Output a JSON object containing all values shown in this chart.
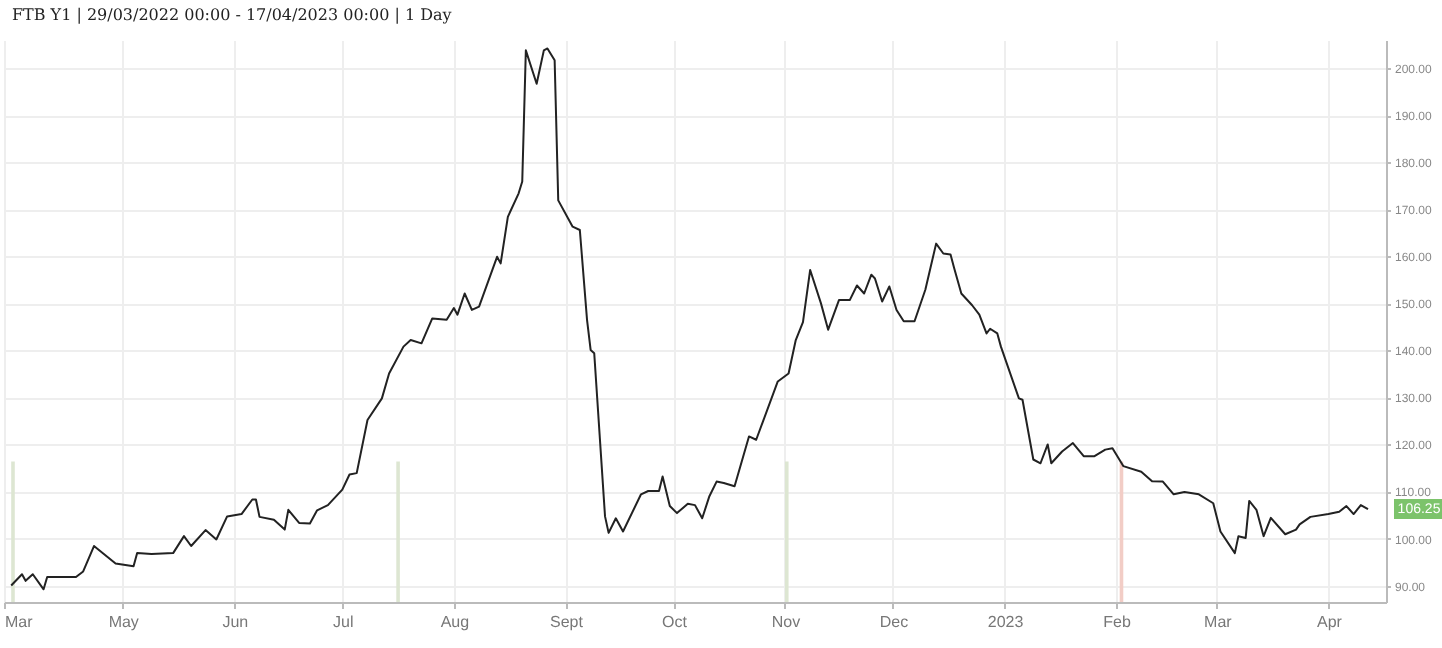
{
  "chart_data": {
    "type": "line",
    "title": "FTB Y1 | 29/03/2022 00:00 - 17/04/2023 00:00 | 1 Day",
    "x": [
      "2022-03-31",
      "2022-04-03",
      "2022-04-04",
      "2022-04-06",
      "2022-04-09",
      "2022-04-10",
      "2022-04-18",
      "2022-04-20",
      "2022-04-23",
      "2022-04-29",
      "2022-05-04",
      "2022-05-05",
      "2022-05-09",
      "2022-05-15",
      "2022-05-18",
      "2022-05-20",
      "2022-05-24",
      "2022-05-27",
      "2022-05-30",
      "2022-06-03",
      "2022-06-06",
      "2022-06-07",
      "2022-06-08",
      "2022-06-12",
      "2022-06-15",
      "2022-06-16",
      "2022-06-19",
      "2022-06-22",
      "2022-06-24",
      "2022-06-27",
      "2022-07-01",
      "2022-07-03",
      "2022-07-05",
      "2022-07-08",
      "2022-07-12",
      "2022-07-14",
      "2022-07-18",
      "2022-07-20",
      "2022-07-23",
      "2022-07-26",
      "2022-07-30",
      "2022-08-01",
      "2022-08-02",
      "2022-08-04",
      "2022-08-06",
      "2022-08-08",
      "2022-08-13",
      "2022-08-14",
      "2022-08-16",
      "2022-08-19",
      "2022-08-20",
      "2022-08-21",
      "2022-08-24",
      "2022-08-26",
      "2022-08-27",
      "2022-08-29",
      "2022-08-30",
      "2022-09-03",
      "2022-09-05",
      "2022-09-07",
      "2022-09-08",
      "2022-09-09",
      "2022-09-12",
      "2022-09-13",
      "2022-09-15",
      "2022-09-17",
      "2022-09-22",
      "2022-09-24",
      "2022-09-27",
      "2022-09-28",
      "2022-09-30",
      "2022-10-02",
      "2022-10-05",
      "2022-10-07",
      "2022-10-09",
      "2022-10-11",
      "2022-10-13",
      "2022-10-15",
      "2022-10-18",
      "2022-10-22",
      "2022-10-24",
      "2022-10-30",
      "2022-11-02",
      "2022-11-04",
      "2022-11-06",
      "2022-11-08",
      "2022-11-11",
      "2022-11-13",
      "2022-11-16",
      "2022-11-19",
      "2022-11-21",
      "2022-11-23",
      "2022-11-25",
      "2022-11-26",
      "2022-11-28",
      "2022-11-30",
      "2022-12-02",
      "2022-12-04",
      "2022-12-07",
      "2022-12-10",
      "2022-12-13",
      "2022-12-15",
      "2022-12-17",
      "2022-12-18",
      "2022-12-20",
      "2022-12-23",
      "2022-12-25",
      "2022-12-27",
      "2022-12-28",
      "2022-12-30",
      "2022-12-31",
      "2023-01-05",
      "2023-01-06",
      "2023-01-09",
      "2023-01-11",
      "2023-01-13",
      "2023-01-14",
      "2023-01-17",
      "2023-01-20",
      "2023-01-23",
      "2023-01-26",
      "2023-01-29",
      "2023-01-31",
      "2023-02-03",
      "2023-02-08",
      "2023-02-11",
      "2023-02-14",
      "2023-02-17",
      "2023-02-20",
      "2023-02-24",
      "2023-02-28",
      "2023-03-02",
      "2023-03-06",
      "2023-03-07",
      "2023-03-09",
      "2023-03-10",
      "2023-03-12",
      "2023-03-14",
      "2023-03-16",
      "2023-03-20",
      "2023-03-23",
      "2023-03-24",
      "2023-03-27",
      "2023-04-01",
      "2023-04-04",
      "2023-04-06",
      "2023-04-08",
      "2023-04-10",
      "2023-04-12"
    ],
    "values": [
      90,
      92.4,
      91,
      92.4,
      89.2,
      91.8,
      91.8,
      93,
      98.4,
      94.7,
      94.1,
      96.9,
      96.7,
      96.9,
      100.5,
      98.4,
      101.8,
      99.8,
      104.7,
      105.2,
      108.3,
      108.3,
      104.6,
      104,
      101.9,
      106.1,
      103.3,
      103.2,
      106,
      107.1,
      110.4,
      113.6,
      113.9,
      125.2,
      129.8,
      135.1,
      140.8,
      142.2,
      141.5,
      146.8,
      146.5,
      149,
      147.6,
      152.1,
      148.6,
      149.3,
      159.9,
      158.5,
      168.4,
      173.4,
      175.9,
      203.8,
      196.7,
      203.8,
      204.2,
      201.7,
      171.9,
      166.3,
      165.6,
      146.5,
      140.1,
      139.4,
      104.7,
      101.2,
      104.3,
      101.5,
      109.4,
      110.1,
      110.1,
      113.2,
      106.9,
      105.4,
      107.4,
      107.1,
      104.3,
      109,
      112.1,
      111.8,
      111.1,
      121.7,
      121,
      133.4,
      135.1,
      142.2,
      146,
      157.1,
      150,
      144.4,
      150.7,
      150.7,
      153.8,
      152.1,
      156.1,
      155.3,
      150.4,
      153.6,
      148.6,
      146.2,
      146.2,
      152.9,
      162.7,
      160.6,
      160.4,
      157.5,
      152.1,
      149.6,
      147.6,
      143.6,
      144.6,
      143.6,
      140.8,
      129.8,
      129.5,
      116.8,
      116,
      120,
      116,
      118.5,
      120.3,
      117.5,
      117.5,
      118.9,
      119.2,
      115.4,
      114.2,
      112.2,
      112.1,
      109.4,
      109.9,
      109.4,
      107.5,
      101.5,
      96.9,
      100.5,
      100.1,
      108,
      106.1,
      100.5,
      104.4,
      100.9,
      101.9,
      103,
      104.6,
      105.2,
      105.7,
      106.9,
      105.2,
      107.1,
      106.25
    ],
    "color": "#222222",
    "xlim": [
      "2022-03-29",
      "2023-04-17"
    ],
    "xticks": [
      {
        "value": "2022-03-29",
        "label": "Mar"
      },
      {
        "value": "2022-05-01",
        "label": "May"
      },
      {
        "value": "2022-06-01",
        "label": "Jun"
      },
      {
        "value": "2022-07-01",
        "label": "Jul"
      },
      {
        "value": "2022-08-01",
        "label": "Aug"
      },
      {
        "value": "2022-09-01",
        "label": "Sept"
      },
      {
        "value": "2022-10-01",
        "label": "Oct"
      },
      {
        "value": "2022-11-01",
        "label": "Nov"
      },
      {
        "value": "2022-12-01",
        "label": "Dec"
      },
      {
        "value": "2023-01-01",
        "label": "2023"
      },
      {
        "value": "2023-02-01",
        "label": "Feb"
      },
      {
        "value": "2023-03-01",
        "label": "Mar"
      },
      {
        "value": "2023-04-01",
        "label": "Apr"
      }
    ],
    "ylim": [
      86.5,
      206
    ],
    "yticks": [
      {
        "value": 90,
        "label": "90.00"
      },
      {
        "value": 100,
        "label": "100.00"
      },
      {
        "value": 110,
        "label": "110.00"
      },
      {
        "value": 120,
        "label": "120.00"
      },
      {
        "value": 130,
        "label": "130.00"
      },
      {
        "value": 140,
        "label": "140.00"
      },
      {
        "value": 150,
        "label": "150.00"
      },
      {
        "value": 160,
        "label": "160.00"
      },
      {
        "value": 170,
        "label": "170.00"
      },
      {
        "value": 180,
        "label": "180.00"
      },
      {
        "value": 190,
        "label": "190.00"
      },
      {
        "value": 200,
        "label": "200.00"
      }
    ],
    "grid": true,
    "bands": [
      {
        "axis": "x",
        "from": "2022-03-31",
        "to": "2022-04-01",
        "color": "#dde6d2"
      },
      {
        "axis": "x",
        "from": "2022-07-16",
        "to": "2022-07-17",
        "color": "#dde6d2"
      },
      {
        "axis": "x",
        "from": "2022-11-01",
        "to": "2022-11-02",
        "color": "#dde6d2"
      },
      {
        "axis": "x",
        "from": "2023-02-02",
        "to": "2023-02-03",
        "color": "#f2cdc6"
      }
    ],
    "annotations": [
      {
        "text": "106.25",
        "x": "2023-04-12",
        "y": 106.25
      }
    ]
  }
}
